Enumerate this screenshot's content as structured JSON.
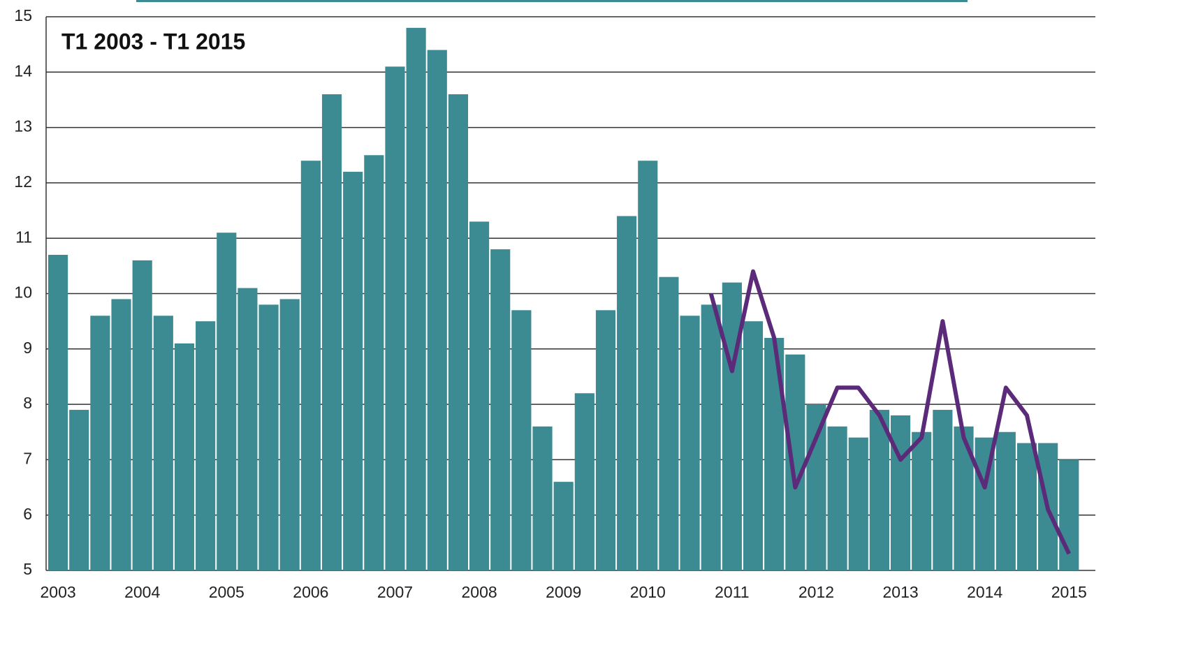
{
  "chart_data": {
    "type": "bar",
    "title": "T1 2003 - T1 2015",
    "categories": [
      "2003",
      null,
      null,
      null,
      "2004",
      null,
      null,
      null,
      "2005",
      null,
      null,
      null,
      "2006",
      null,
      null,
      null,
      "2007",
      null,
      null,
      null,
      "2008",
      null,
      null,
      null,
      "2009",
      null,
      null,
      null,
      "2010",
      null,
      null,
      null,
      "2011",
      null,
      null,
      null,
      "2012",
      null,
      null,
      null,
      "2013",
      null,
      null,
      null,
      "2014",
      null,
      null,
      null,
      "2015"
    ],
    "series": [
      {
        "type": "bar",
        "color": "#3d8b92",
        "values": [
          10.7,
          7.9,
          9.6,
          9.9,
          10.6,
          9.6,
          9.1,
          9.5,
          11.1,
          10.1,
          9.8,
          9.9,
          12.4,
          13.6,
          12.2,
          12.5,
          14.1,
          14.8,
          14.4,
          13.6,
          11.3,
          10.8,
          9.7,
          7.6,
          6.6,
          8.2,
          9.7,
          11.4,
          12.4,
          10.3,
          9.6,
          9.8,
          10.2,
          9.5,
          9.2,
          8.9,
          8.0,
          7.6,
          7.4,
          7.9,
          7.8,
          7.5,
          7.9,
          7.6,
          7.4,
          7.5,
          7.3,
          7.3,
          7.0
        ]
      },
      {
        "type": "line",
        "color": "#5b2a78",
        "values": [
          null,
          null,
          null,
          null,
          null,
          null,
          null,
          null,
          null,
          null,
          null,
          null,
          null,
          null,
          null,
          null,
          null,
          null,
          null,
          null,
          null,
          null,
          null,
          null,
          null,
          null,
          null,
          null,
          null,
          null,
          null,
          10.0,
          8.6,
          10.4,
          9.2,
          6.5,
          7.4,
          8.3,
          8.3,
          7.8,
          7.0,
          7.4,
          9.5,
          7.4,
          6.5,
          8.3,
          7.8,
          6.1,
          5.3
        ]
      }
    ],
    "ylim": [
      5,
      15
    ],
    "yticks": [
      5,
      6,
      7,
      8,
      9,
      10,
      11,
      12,
      13,
      14,
      15
    ],
    "grid": true
  }
}
